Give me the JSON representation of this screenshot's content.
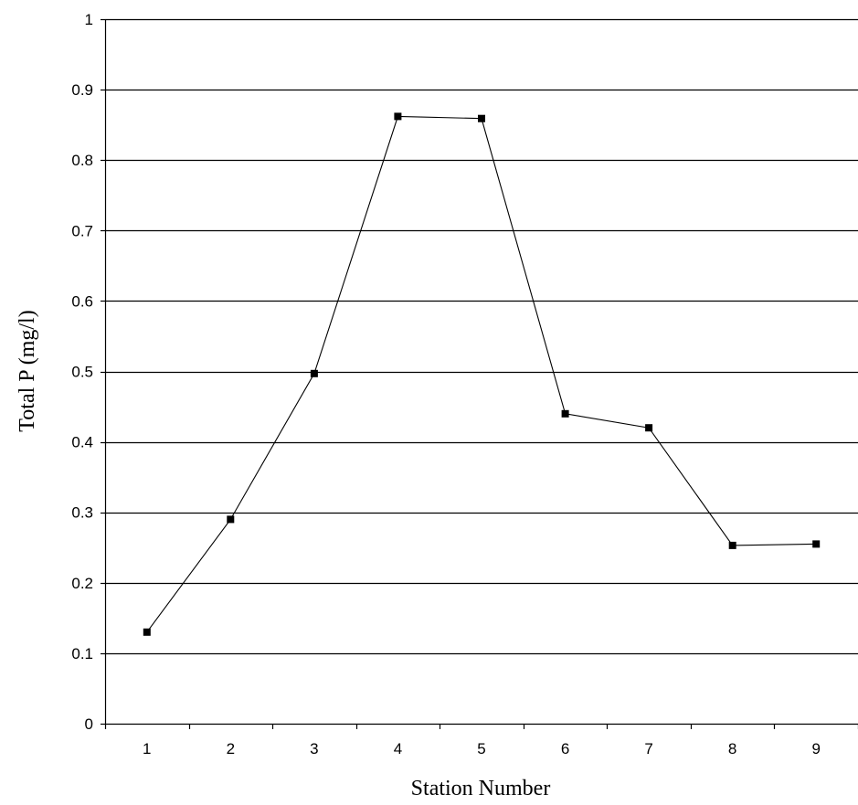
{
  "chart_data": {
    "type": "line",
    "title": "",
    "xlabel": "Station Number",
    "ylabel": "Total P (mg/l)",
    "categories": [
      "1",
      "2",
      "3",
      "4",
      "5",
      "6",
      "7",
      "8",
      "9"
    ],
    "series": [
      {
        "values": [
          0.13,
          0.29,
          0.497,
          0.862,
          0.859,
          0.44,
          0.42,
          0.253,
          0.255
        ]
      }
    ],
    "ylim": [
      0,
      1
    ],
    "yticks": [
      0,
      0.1,
      0.2,
      0.3,
      0.4,
      0.5,
      0.6,
      0.7,
      0.8,
      0.9,
      1
    ],
    "ytick_labels": [
      "0",
      "0.1",
      "0.2",
      "0.3",
      "0.4",
      "0.5",
      "0.6",
      "0.7",
      "0.8",
      "0.9",
      "1"
    ],
    "grid": "horizontal",
    "legend": "none",
    "colors": {
      "line": "#000000",
      "marker": "#000000",
      "grid": "#000000"
    }
  }
}
